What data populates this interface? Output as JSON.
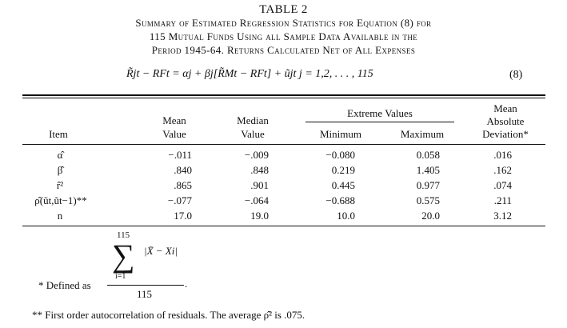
{
  "caption": {
    "table_number": "TABLE 2",
    "line1": "Summary of Estimated Regression Statistics for Equation (8) for",
    "line2": "115 Mutual Funds Using all Sample Data Available in the",
    "line3": "Period 1945-64. Returns Calculated Net of All Expenses"
  },
  "equation": {
    "text": "R̃jt − RFt = αj + βj[R̃Mt − RFt] + ũjt     j = 1,2, . . . , 115",
    "number": "(8)"
  },
  "table": {
    "headers": {
      "item": "Item",
      "mean_value": [
        "Mean",
        "Value"
      ],
      "median_value": [
        "Median",
        "Value"
      ],
      "extreme_values": "Extreme Values",
      "minimum": "Minimum",
      "maximum": "Maximum",
      "mean_abs_dev": [
        "Mean",
        "Absolute",
        "Deviation*"
      ]
    },
    "rows": [
      {
        "item": "α̂",
        "mean": "−.011",
        "median": "−.009",
        "min": "−0.080",
        "max": "0.058",
        "mad": ".016"
      },
      {
        "item": "β̂",
        "mean": ".840",
        "median": ".848",
        "min": "0.219",
        "max": "1.405",
        "mad": ".162"
      },
      {
        "item": "r̂²",
        "mean": ".865",
        "median": ".901",
        "min": "0.445",
        "max": "0.977",
        "mad": ".074"
      },
      {
        "item": "ρ̂(ũt,ũt−1)**",
        "mean": "−.077",
        "median": "−.064",
        "min": "−0.688",
        "max": "0.575",
        "mad": ".211"
      },
      {
        "item": "n",
        "mean": "17.0",
        "median": "19.0",
        "min": "10.0",
        "max": "20.0",
        "mad": "3.12"
      }
    ]
  },
  "footnotes": {
    "sum_upper": "115",
    "sum_lower": "i=1",
    "sum_term": "|X̄ − Xi|",
    "denominator": "115",
    "defined_as": "* Defined as",
    "period": ".",
    "note2": "** First order autocorrelation of residuals. The average ρ̂² is .075."
  }
}
